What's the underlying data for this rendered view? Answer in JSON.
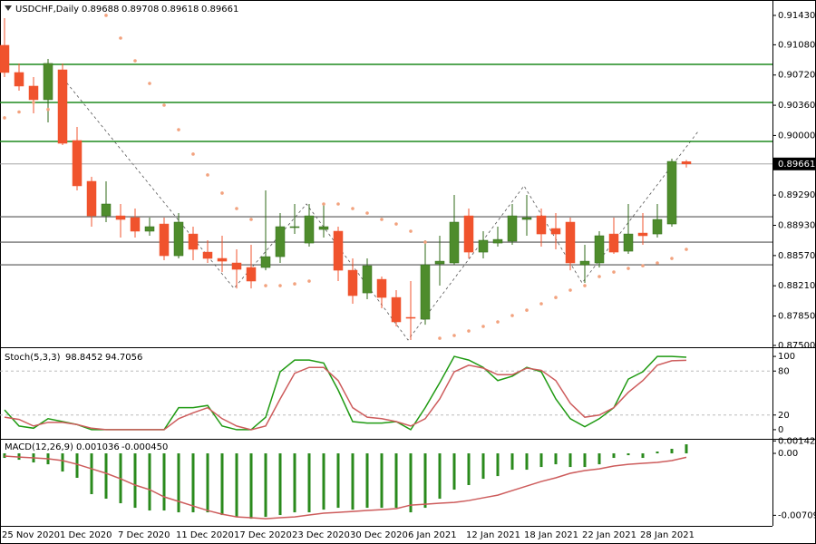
{
  "chart_data": [
    {
      "type": "candlestick",
      "title": "USDCHF,Daily",
      "categories": [
        "25 Nov 2020",
        null,
        null,
        null,
        "1 Dec 2020",
        null,
        null,
        null,
        "7 Dec 2020",
        null,
        null,
        null,
        "11 Dec 2020",
        null,
        null,
        null,
        "17 Dec 2020",
        null,
        null,
        null,
        "23 Dec 2020",
        null,
        null,
        null,
        "30 Dec 2020",
        null,
        null,
        null,
        "6 Jan 2021",
        null,
        null,
        null,
        "12 Jan 2021",
        null,
        null,
        null,
        "18 Jan 2021",
        null,
        null,
        null,
        "22 Jan 2021",
        null,
        null,
        null,
        "28 Jan 2021",
        null,
        null,
        null
      ],
      "open": [
        0.91074,
        0.9075,
        0.90588,
        0.90426,
        0.90782,
        0.8994,
        0.89454,
        0.89043,
        0.89043,
        0.89022,
        0.8886,
        0.88946,
        0.88568,
        0.88827,
        0.88611,
        0.88536,
        0.88482,
        0.88428,
        0.88428,
        0.88557,
        0.88903,
        0.88719,
        0.88881,
        0.8886,
        0.88395,
        0.88125,
        0.88287,
        0.88071,
        0.87834,
        0.87812,
        0.88471,
        0.88482,
        0.89043,
        0.88611,
        0.88719,
        0.88741,
        0.89,
        0.89043,
        0.88892,
        0.88968,
        0.8846,
        0.88482,
        0.88827,
        0.88622,
        0.88838,
        0.88827,
        0.88946,
        0.89688
      ],
      "high": [
        0.91398,
        0.90858,
        0.90696,
        0.90912,
        0.90858,
        0.90102,
        0.89508,
        0.89454,
        0.89184,
        0.8913,
        0.89022,
        0.89022,
        0.89076,
        0.88914,
        0.88752,
        0.88806,
        0.88644,
        0.88698,
        0.89346,
        0.89076,
        0.89184,
        0.89184,
        0.89184,
        0.88914,
        0.88536,
        0.88536,
        0.8832,
        0.88158,
        0.88266,
        0.88752,
        0.88806,
        0.89292,
        0.8913,
        0.8886,
        0.88914,
        0.89184,
        0.89292,
        0.8913,
        0.89076,
        0.89022,
        0.88698,
        0.8886,
        0.89022,
        0.89184,
        0.89076,
        0.89184,
        0.89724,
        0.89708
      ],
      "low": [
        0.90696,
        0.90534,
        0.90264,
        0.90156,
        0.89886,
        0.89346,
        0.88914,
        0.88968,
        0.88784,
        0.88784,
        0.88806,
        0.88514,
        0.88536,
        0.88514,
        0.88482,
        0.88374,
        0.88179,
        0.88179,
        0.88395,
        0.88482,
        0.88827,
        0.88676,
        0.88784,
        0.88266,
        0.87996,
        0.8805,
        0.87942,
        0.87726,
        0.87564,
        0.87747,
        0.88212,
        0.8846,
        0.88536,
        0.88536,
        0.88676,
        0.88698,
        0.88806,
        0.88676,
        0.88644,
        0.88395,
        0.88244,
        0.88428,
        0.8859,
        0.8859,
        0.88698,
        0.88784,
        0.88914,
        0.89618
      ],
      "close": [
        0.9075,
        0.90588,
        0.90426,
        0.90858,
        0.89907,
        0.894,
        0.89043,
        0.89184,
        0.89,
        0.8886,
        0.88914,
        0.88568,
        0.88968,
        0.88644,
        0.88536,
        0.88503,
        0.88406,
        0.88266,
        0.88557,
        0.88914,
        0.88914,
        0.89043,
        0.88914,
        0.88395,
        0.88093,
        0.88449,
        0.88071,
        0.8778,
        0.87823,
        0.8846,
        0.88503,
        0.88968,
        0.88611,
        0.88752,
        0.88762,
        0.89043,
        0.89022,
        0.88827,
        0.88827,
        0.88482,
        0.88503,
        0.88806,
        0.88611,
        0.88827,
        0.88806,
        0.89,
        0.89691,
        0.89661
      ],
      "up_color": "#4e8c2c",
      "down_color": "#f0532d",
      "sar": {
        "color": "#f2a27e",
        "values": [
          0.9021,
          0.9028,
          0.90393,
          0.9031,
          null,
          null,
          null,
          0.9143,
          0.9116,
          0.9089,
          0.9062,
          0.90361,
          0.90069,
          0.89778,
          0.8953,
          0.89314,
          0.8913,
          0.89,
          0.88212,
          0.88212,
          0.88233,
          0.88266,
          0.89184,
          0.89184,
          0.8913,
          0.89076,
          0.89,
          0.88946,
          0.8886,
          0.8873,
          0.87585,
          0.87618,
          0.87672,
          0.87726,
          0.8778,
          0.87856,
          0.8792,
          0.87996,
          0.88071,
          0.88158,
          0.88212,
          0.8832,
          0.88374,
          0.88417,
          0.88449,
          0.88482,
          0.88536,
          0.88644
        ]
      },
      "levels": [
        {
          "value": 0.90847,
          "color": "#1e8a1e"
        },
        {
          "value": 0.90393,
          "color": "#1e8a1e"
        },
        {
          "value": 0.89929,
          "color": "#1e8a1e"
        },
        {
          "value": 0.89032,
          "color": "#555555"
        },
        {
          "value": 0.8873,
          "color": "#555555"
        },
        {
          "value": 0.8846,
          "color": "#555555"
        }
      ],
      "ylim": [
        0.87478,
        0.91581
      ],
      "yticks": [
        {
          "value": 0.9143,
          "label": "0.91430"
        },
        {
          "value": 0.9108,
          "label": "0.91080"
        },
        {
          "value": 0.9072,
          "label": "0.90720"
        },
        {
          "value": 0.9036,
          "label": "0.90360"
        },
        {
          "value": 0.9,
          "label": "0.90000"
        },
        {
          "value": 0.8929,
          "label": "0.89290"
        },
        {
          "value": 0.8893,
          "label": "0.88930"
        },
        {
          "value": 0.8857,
          "label": "0.88570"
        },
        {
          "value": 0.8821,
          "label": "0.88210"
        },
        {
          "value": 0.8785,
          "label": "0.87850"
        },
        {
          "value": 0.875,
          "label": "0.87500"
        }
      ]
    },
    {
      "type": "line",
      "title": "Stoch(5,3,3)",
      "series": [
        {
          "color": "#1f9a12",
          "values": [
            27,
            5,
            2,
            15,
            11,
            7,
            0,
            0,
            0,
            0,
            0,
            0,
            30,
            30,
            33,
            5,
            0,
            0,
            17,
            79,
            95,
            95,
            91,
            54,
            11,
            9,
            9,
            11,
            0,
            30,
            64,
            100,
            95,
            85,
            67,
            73,
            85,
            79,
            42,
            15,
            4,
            15,
            30,
            69,
            79,
            100,
            100,
            98.8452
          ]
        },
        {
          "color": "#cd5c5c",
          "values": [
            17,
            14,
            5,
            10,
            10,
            7,
            2,
            0,
            0,
            0,
            0,
            0,
            15,
            23,
            30,
            15,
            5,
            0,
            5,
            42,
            77,
            85,
            85,
            67,
            30,
            17,
            15,
            11,
            5,
            15,
            42,
            79,
            88,
            84,
            75,
            75,
            84,
            81,
            67,
            36,
            17,
            20,
            30,
            51,
            67,
            88,
            94,
            94.7056
          ]
        }
      ],
      "levels": [
        80,
        20
      ],
      "ylim": [
        -10,
        110
      ],
      "yticks": [
        100,
        80,
        20,
        0
      ]
    },
    {
      "type": "macd",
      "title": "MACD(12,26,9)",
      "series": [
        {
          "color": "#2a8a1c",
          "values": [
            -0.00052,
            -0.00073,
            -0.00104,
            -0.00125,
            -0.00208,
            -0.0028,
            -0.00467,
            -0.00519,
            -0.00571,
            -0.00623,
            -0.00654,
            -0.00654,
            -0.00675,
            -0.00675,
            -0.00675,
            -0.00706,
            -0.00727,
            -0.00748,
            -0.00727,
            -0.00706,
            -0.00675,
            -0.00675,
            -0.00644,
            -0.00623,
            -0.00644,
            -0.00623,
            -0.00623,
            -0.00623,
            -0.00675,
            -0.00623,
            -0.00519,
            -0.00415,
            -0.00363,
            -0.00291,
            -0.0026,
            -0.00187,
            -0.00187,
            -0.00156,
            -0.00125,
            -0.00156,
            -0.00156,
            -0.00125,
            -0.00052,
            -0.00021,
            -0.00052,
            0.00021,
            0.00052,
            0.001036
          ]
        },
        {
          "color": "#cd5c5c",
          "values": [
            -0.00031,
            -0.00042,
            -0.00052,
            -0.00062,
            -0.00083,
            -0.00125,
            -0.00177,
            -0.00228,
            -0.00291,
            -0.00363,
            -0.00415,
            -0.00498,
            -0.0055,
            -0.00602,
            -0.00654,
            -0.00696,
            -0.00727,
            -0.00737,
            -0.00748,
            -0.00737,
            -0.00727,
            -0.00706,
            -0.00685,
            -0.00675,
            -0.00665,
            -0.00654,
            -0.00644,
            -0.00633,
            -0.00592,
            -0.00582,
            -0.00571,
            -0.00561,
            -0.0054,
            -0.00509,
            -0.00478,
            -0.00426,
            -0.00374,
            -0.00322,
            -0.0028,
            -0.00228,
            -0.00197,
            -0.00177,
            -0.00145,
            -0.00125,
            -0.00114,
            -0.00104,
            -0.00083,
            -0.00045
          ],
          "value_labels": [
            null,
            null,
            null,
            null,
            null,
            null,
            null,
            null,
            null,
            null,
            null,
            null,
            null,
            null,
            null,
            null,
            null,
            null,
            null,
            null,
            null,
            null,
            null,
            null,
            null,
            null,
            null,
            null,
            null,
            null,
            null,
            null,
            null,
            null,
            null,
            null,
            null,
            null,
            null,
            null,
            null,
            null,
            null,
            null,
            null,
            null,
            null,
            "-0.000450"
          ]
        }
      ],
      "ylim": [
        -0.0083,
        0.00156
      ],
      "yticks": [
        0.001424,
        {
          "value": 0,
          "label": "0.00"
        },
        -0.007092
      ]
    }
  ]
}
